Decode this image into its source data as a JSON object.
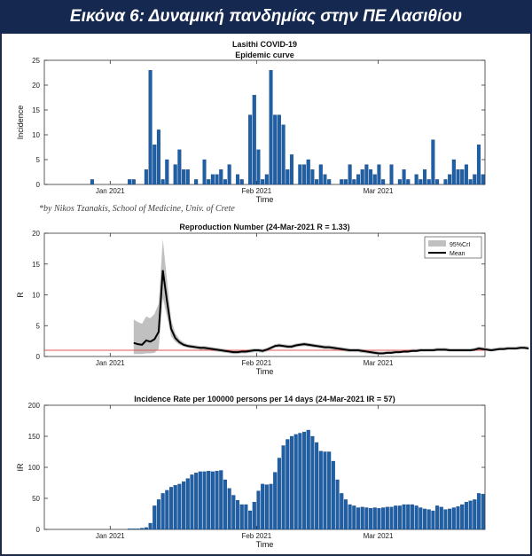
{
  "header": {
    "title": "Εικόνα 6: Δυναμική πανδημίας στην ΠΕ Λασιθίου"
  },
  "credit": "*by Nikos Tzanakis, School of Medicine, Univ. of Crete",
  "colors": {
    "bar": "#1f5fa6",
    "bar_edge": "#0e3d73",
    "banner": "#15284f",
    "mean_line": "#000000",
    "ci_band": "#c0c0c0",
    "threshold": "#e05555"
  },
  "chart_data": [
    {
      "type": "bar",
      "title": "Lasithi COVID-19",
      "subtitle": "Epidemic curve",
      "xlabel": "Time",
      "ylabel": "Incidence",
      "ylim": [
        0,
        25
      ],
      "yticks": [
        "0",
        "5",
        "10",
        "15",
        "20",
        "25"
      ],
      "xticks": [
        "Jan 2021",
        "Feb 2021",
        "Mar 2021"
      ],
      "grid": false,
      "values": [
        0,
        0,
        0,
        0,
        0,
        0,
        0,
        0,
        0,
        0,
        0,
        1,
        0,
        0,
        0,
        0,
        0,
        0,
        0,
        0,
        1,
        1,
        0,
        0,
        3,
        23,
        8,
        11,
        1,
        5,
        0,
        4,
        7,
        3,
        3,
        0,
        1,
        0,
        5,
        1,
        2,
        2,
        3,
        1,
        4,
        0,
        2,
        1,
        0,
        14,
        18,
        7,
        1,
        2,
        23,
        14,
        14,
        12,
        3,
        6,
        0,
        4,
        4,
        5,
        3,
        1,
        4,
        2,
        1,
        0,
        0,
        1,
        1,
        4,
        1,
        2,
        3,
        4,
        3,
        2,
        4,
        1,
        0,
        4,
        0,
        1,
        3,
        1,
        0,
        2,
        1,
        3,
        1,
        9,
        1,
        0,
        1,
        2,
        5,
        3,
        3,
        4,
        1,
        2,
        8,
        2
      ]
    },
    {
      "type": "line",
      "title": "Reproduction Number (24-Mar-2021 R = 1.33)",
      "xlabel": "Time",
      "ylabel": "R",
      "ylim": [
        0,
        20
      ],
      "yticks": [
        "0",
        "5",
        "10",
        "15",
        "20"
      ],
      "xticks": [
        "Jan 2021",
        "Feb 2021",
        "Mar 2021"
      ],
      "legend": [
        "95%CrI",
        "Mean"
      ],
      "legend_position": "top-right",
      "threshold": 1,
      "start_index": 21,
      "mean": [
        2.2,
        2.0,
        1.9,
        2.6,
        2.4,
        2.8,
        4.0,
        14.0,
        9.0,
        4.5,
        3.0,
        2.3,
        1.9,
        1.7,
        1.6,
        1.5,
        1.4,
        1.4,
        1.3,
        1.2,
        1.1,
        1.0,
        0.9,
        0.8,
        0.7,
        0.7,
        0.8,
        0.8,
        0.9,
        1.0,
        1.0,
        0.9,
        1.1,
        1.4,
        1.7,
        1.8,
        1.7,
        1.6,
        1.6,
        1.8,
        1.9,
        2.0,
        1.9,
        1.8,
        1.7,
        1.6,
        1.5,
        1.5,
        1.4,
        1.3,
        1.2,
        1.1,
        1.0,
        1.0,
        1.0,
        0.9,
        0.8,
        0.7,
        0.6,
        0.5,
        0.5,
        0.6,
        0.6,
        0.7,
        0.7,
        0.8,
        0.8,
        0.9,
        0.9,
        1.0,
        1.0,
        1.0,
        1.0,
        1.1,
        1.1,
        1.1,
        1.0,
        1.0,
        1.0,
        1.0,
        1.0,
        1.0,
        1.1,
        1.3,
        1.2,
        1.1,
        1.0,
        1.1,
        1.2,
        1.2,
        1.3,
        1.3,
        1.3,
        1.4,
        1.4,
        1.3
      ],
      "lower": [
        0.4,
        0.4,
        0.4,
        0.5,
        0.5,
        0.6,
        1.2,
        9.5,
        6.5,
        3.3,
        2.4,
        1.9,
        1.6,
        1.4,
        1.3,
        1.2,
        1.1,
        1.1,
        1.0,
        0.9,
        0.8,
        0.7,
        0.6,
        0.5,
        0.4,
        0.4,
        0.5,
        0.5,
        0.6,
        0.7,
        0.7,
        0.6,
        0.8,
        1.1,
        1.4,
        1.5,
        1.4,
        1.3,
        1.3,
        1.5,
        1.6,
        1.7,
        1.6,
        1.5,
        1.4,
        1.3,
        1.2,
        1.2,
        1.1,
        1.0,
        0.9,
        0.8,
        0.7,
        0.7,
        0.7,
        0.6,
        0.5,
        0.4,
        0.3,
        0.3,
        0.3,
        0.4,
        0.4,
        0.5,
        0.5,
        0.6,
        0.6,
        0.7,
        0.7,
        0.8,
        0.8,
        0.8,
        0.8,
        0.9,
        0.9,
        0.9,
        0.8,
        0.8,
        0.8,
        0.8,
        0.8,
        0.8,
        0.9,
        1.1,
        1.0,
        0.9,
        0.8,
        0.9,
        1.0,
        1.0,
        1.1,
        1.1,
        1.1,
        1.2,
        1.2,
        1.1
      ],
      "upper": [
        6.0,
        5.6,
        5.3,
        6.5,
        6.2,
        6.9,
        8.6,
        19.0,
        12.5,
        6.0,
        3.8,
        2.8,
        2.3,
        2.0,
        1.9,
        1.8,
        1.7,
        1.7,
        1.6,
        1.5,
        1.4,
        1.3,
        1.2,
        1.1,
        1.0,
        1.0,
        1.1,
        1.1,
        1.2,
        1.3,
        1.3,
        1.2,
        1.4,
        1.7,
        2.0,
        2.1,
        2.0,
        1.9,
        1.9,
        2.1,
        2.2,
        2.3,
        2.2,
        2.1,
        2.0,
        1.9,
        1.8,
        1.8,
        1.7,
        1.6,
        1.5,
        1.4,
        1.3,
        1.3,
        1.3,
        1.2,
        1.1,
        1.0,
        0.9,
        0.8,
        0.8,
        0.9,
        0.9,
        1.0,
        1.0,
        1.1,
        1.1,
        1.2,
        1.2,
        1.3,
        1.3,
        1.3,
        1.3,
        1.4,
        1.4,
        1.4,
        1.3,
        1.3,
        1.3,
        1.3,
        1.3,
        1.3,
        1.4,
        1.6,
        1.5,
        1.4,
        1.3,
        1.4,
        1.5,
        1.5,
        1.6,
        1.6,
        1.6,
        1.7,
        1.7,
        1.6
      ]
    },
    {
      "type": "bar",
      "title": "Incidence Rate per 100000 persons per 14 days (24-Mar-2021 IR = 57)",
      "xlabel": "Time",
      "ylabel": "IR",
      "ylim": [
        0,
        200
      ],
      "yticks": [
        "0",
        "50",
        "100",
        "150",
        "200"
      ],
      "xticks": [
        "Jan 2021",
        "Feb 2021",
        "Mar 2021"
      ],
      "grid": false,
      "values": [
        0,
        0,
        0,
        0,
        0,
        0,
        0,
        0,
        0,
        0,
        0,
        0,
        0,
        0,
        0,
        0,
        0,
        0,
        0,
        0,
        1,
        1,
        1,
        2,
        3,
        10,
        38,
        48,
        58,
        63,
        68,
        71,
        73,
        77,
        82,
        88,
        91,
        93,
        93,
        94,
        93,
        94,
        95,
        80,
        66,
        55,
        47,
        40,
        40,
        30,
        44,
        62,
        73,
        72,
        73,
        92,
        115,
        135,
        145,
        150,
        153,
        155,
        157,
        160,
        150,
        140,
        126,
        125,
        125,
        110,
        80,
        58,
        48,
        40,
        38,
        35,
        36,
        35,
        34,
        35,
        34,
        35,
        36,
        36,
        38,
        38,
        40,
        40,
        40,
        38,
        35,
        33,
        32,
        30,
        38,
        36,
        32,
        33,
        35,
        37,
        40,
        44,
        46,
        48,
        58,
        57
      ]
    }
  ]
}
